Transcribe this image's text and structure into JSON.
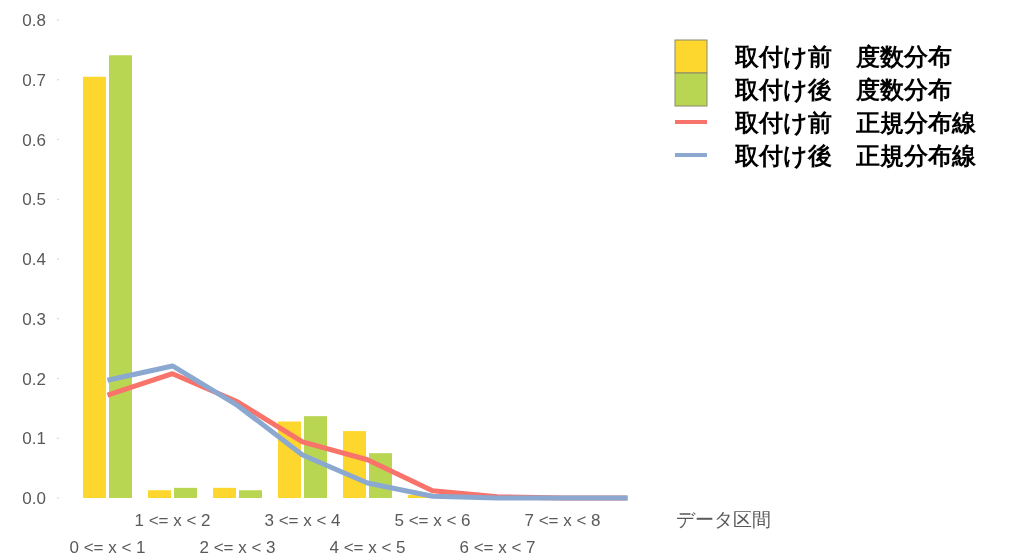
{
  "chart_data": {
    "type": "bar",
    "xlabel": "データ区間",
    "categories": [
      "0 <= x < 1",
      "1 <= x < 2",
      "2 <= x < 3",
      "3 <= x < 4",
      "4 <= x < 5",
      "5 <= x < 6",
      "6 <= x < 7",
      "7 <= x < 8",
      null
    ],
    "series": [
      {
        "name": "取付け前　度数分布",
        "color": "#fdd62e",
        "values": [
          0.705,
          0.013,
          0.017,
          0.128,
          0.112,
          0.005,
          0,
          0,
          0
        ]
      },
      {
        "name": "取付け後　度数分布",
        "color": "#b9d653",
        "values": [
          0.741,
          0.017,
          0.013,
          0.137,
          0.075,
          0,
          0,
          0,
          0
        ]
      },
      {
        "name": "取付け前　正規分布線",
        "type": "line",
        "color": "#f8736a",
        "values": [
          0.172,
          0.208,
          0.161,
          0.094,
          0.064,
          0.012,
          0.002,
          0,
          0
        ]
      },
      {
        "name": "取付け後　正規分布線",
        "type": "line",
        "color": "#8aa8d0",
        "values": [
          0.197,
          0.221,
          0.155,
          0.072,
          0.025,
          0.003,
          0,
          0,
          0
        ]
      }
    ],
    "ylim": [
      0,
      0.8
    ],
    "yticks": [
      {
        "value": 0,
        "label": "0.0"
      },
      {
        "value": 0.1,
        "label": "0.1"
      },
      {
        "value": 0.2,
        "label": "0.2"
      },
      {
        "value": 0.3,
        "label": "0.3"
      },
      {
        "value": 0.4,
        "label": "0.4"
      },
      {
        "value": 0.5,
        "label": "0.5"
      },
      {
        "value": 0.6,
        "label": "0.6"
      },
      {
        "value": 0.7,
        "label": "0.7"
      },
      {
        "value": 0.8,
        "label": "0.8"
      }
    ],
    "legend": "top right",
    "grid": false
  }
}
